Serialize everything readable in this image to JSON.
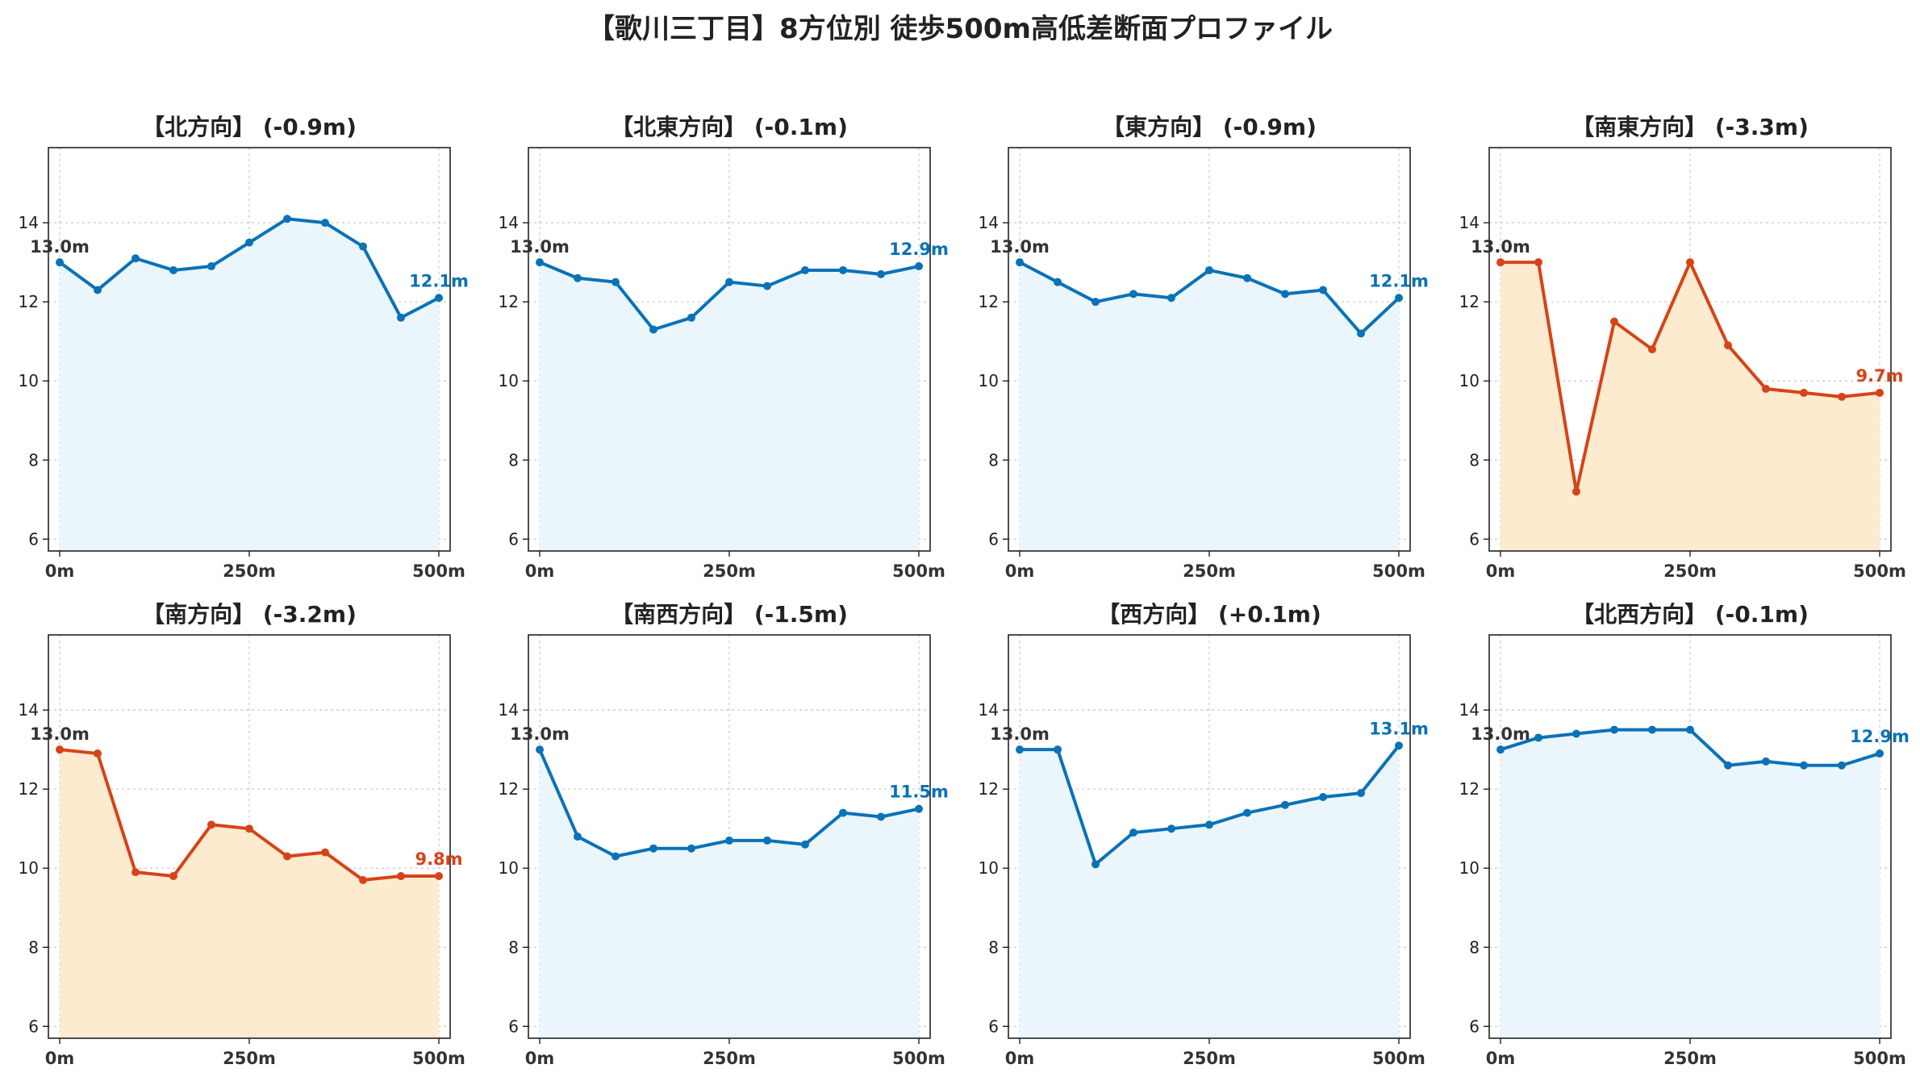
{
  "title": "【歌川三丁目】8方位別 徒歩500m高低差断面プロファイル",
  "colors": {
    "blue_line": "#0a72b7",
    "blue_fill": "#eaf6fc",
    "red_line": "#d64318",
    "red_fill": "#fdebd0",
    "start_label": "#333333",
    "grid": "#c8c8c8"
  },
  "chart_data": [
    {
      "type": "area",
      "title": "【北方向】 (-0.9m)",
      "x": [
        0,
        50,
        100,
        150,
        200,
        250,
        300,
        350,
        400,
        450,
        500
      ],
      "y": [
        13.0,
        12.3,
        13.1,
        12.8,
        12.9,
        13.5,
        14.1,
        14.0,
        13.4,
        11.6,
        12.1
      ],
      "start_label": "13.0m",
      "end_label": "12.1m",
      "color": "blue",
      "ylim": [
        5.7,
        15.9
      ],
      "yticks": [
        6,
        8,
        10,
        12,
        14
      ],
      "xticks": [
        "0m",
        "250m",
        "500m"
      ],
      "grid": true
    },
    {
      "type": "area",
      "title": "【北東方向】 (-0.1m)",
      "x": [
        0,
        50,
        100,
        150,
        200,
        250,
        300,
        350,
        400,
        450,
        500
      ],
      "y": [
        13.0,
        12.6,
        12.5,
        11.3,
        11.6,
        12.5,
        12.4,
        12.8,
        12.8,
        12.7,
        12.9
      ],
      "start_label": "13.0m",
      "end_label": "12.9m",
      "color": "blue",
      "ylim": [
        5.7,
        15.9
      ],
      "yticks": [
        6,
        8,
        10,
        12,
        14
      ],
      "xticks": [
        "0m",
        "250m",
        "500m"
      ],
      "grid": true
    },
    {
      "type": "area",
      "title": "【東方向】 (-0.9m)",
      "x": [
        0,
        50,
        100,
        150,
        200,
        250,
        300,
        350,
        400,
        450,
        500
      ],
      "y": [
        13.0,
        12.5,
        12.0,
        12.2,
        12.1,
        12.8,
        12.6,
        12.2,
        12.3,
        11.2,
        12.1
      ],
      "start_label": "13.0m",
      "end_label": "12.1m",
      "color": "blue",
      "ylim": [
        5.7,
        15.9
      ],
      "yticks": [
        6,
        8,
        10,
        12,
        14
      ],
      "xticks": [
        "0m",
        "250m",
        "500m"
      ],
      "grid": true
    },
    {
      "type": "area",
      "title": "【南東方向】 (-3.3m)",
      "x": [
        0,
        50,
        100,
        150,
        200,
        250,
        300,
        350,
        400,
        450,
        500
      ],
      "y": [
        13.0,
        13.0,
        7.2,
        11.5,
        10.8,
        13.0,
        10.9,
        9.8,
        9.7,
        9.6,
        9.7
      ],
      "start_label": "13.0m",
      "end_label": "9.7m",
      "color": "red",
      "ylim": [
        5.7,
        15.9
      ],
      "yticks": [
        6,
        8,
        10,
        12,
        14
      ],
      "xticks": [
        "0m",
        "250m",
        "500m"
      ],
      "grid": true
    },
    {
      "type": "area",
      "title": "【南方向】 (-3.2m)",
      "x": [
        0,
        50,
        100,
        150,
        200,
        250,
        300,
        350,
        400,
        450,
        500
      ],
      "y": [
        13.0,
        12.9,
        9.9,
        9.8,
        11.1,
        11.0,
        10.3,
        10.4,
        9.7,
        9.8,
        9.8
      ],
      "start_label": "13.0m",
      "end_label": "9.8m",
      "color": "red",
      "ylim": [
        5.7,
        15.9
      ],
      "yticks": [
        6,
        8,
        10,
        12,
        14
      ],
      "xticks": [
        "0m",
        "250m",
        "500m"
      ],
      "grid": true
    },
    {
      "type": "area",
      "title": "【南西方向】 (-1.5m)",
      "x": [
        0,
        50,
        100,
        150,
        200,
        250,
        300,
        350,
        400,
        450,
        500
      ],
      "y": [
        13.0,
        10.8,
        10.3,
        10.5,
        10.5,
        10.7,
        10.7,
        10.6,
        11.4,
        11.3,
        11.5
      ],
      "start_label": "13.0m",
      "end_label": "11.5m",
      "color": "blue",
      "ylim": [
        5.7,
        15.9
      ],
      "yticks": [
        6,
        8,
        10,
        12,
        14
      ],
      "xticks": [
        "0m",
        "250m",
        "500m"
      ],
      "grid": true
    },
    {
      "type": "area",
      "title": "【西方向】 (+0.1m)",
      "x": [
        0,
        50,
        100,
        150,
        200,
        250,
        300,
        350,
        400,
        450,
        500
      ],
      "y": [
        13.0,
        13.0,
        10.1,
        10.9,
        11.0,
        11.1,
        11.4,
        11.6,
        11.8,
        11.9,
        13.1
      ],
      "start_label": "13.0m",
      "end_label": "13.1m",
      "color": "blue",
      "ylim": [
        5.7,
        15.9
      ],
      "yticks": [
        6,
        8,
        10,
        12,
        14
      ],
      "xticks": [
        "0m",
        "250m",
        "500m"
      ],
      "grid": true
    },
    {
      "type": "area",
      "title": "【北西方向】 (-0.1m)",
      "x": [
        0,
        50,
        100,
        150,
        200,
        250,
        300,
        350,
        400,
        450,
        500
      ],
      "y": [
        13.0,
        13.3,
        13.4,
        13.5,
        13.5,
        13.5,
        12.6,
        12.7,
        12.6,
        12.6,
        12.9
      ],
      "start_label": "13.0m",
      "end_label": "12.9m",
      "color": "blue",
      "ylim": [
        5.7,
        15.9
      ],
      "yticks": [
        6,
        8,
        10,
        12,
        14
      ],
      "xticks": [
        "0m",
        "250m",
        "500m"
      ],
      "grid": true
    }
  ]
}
